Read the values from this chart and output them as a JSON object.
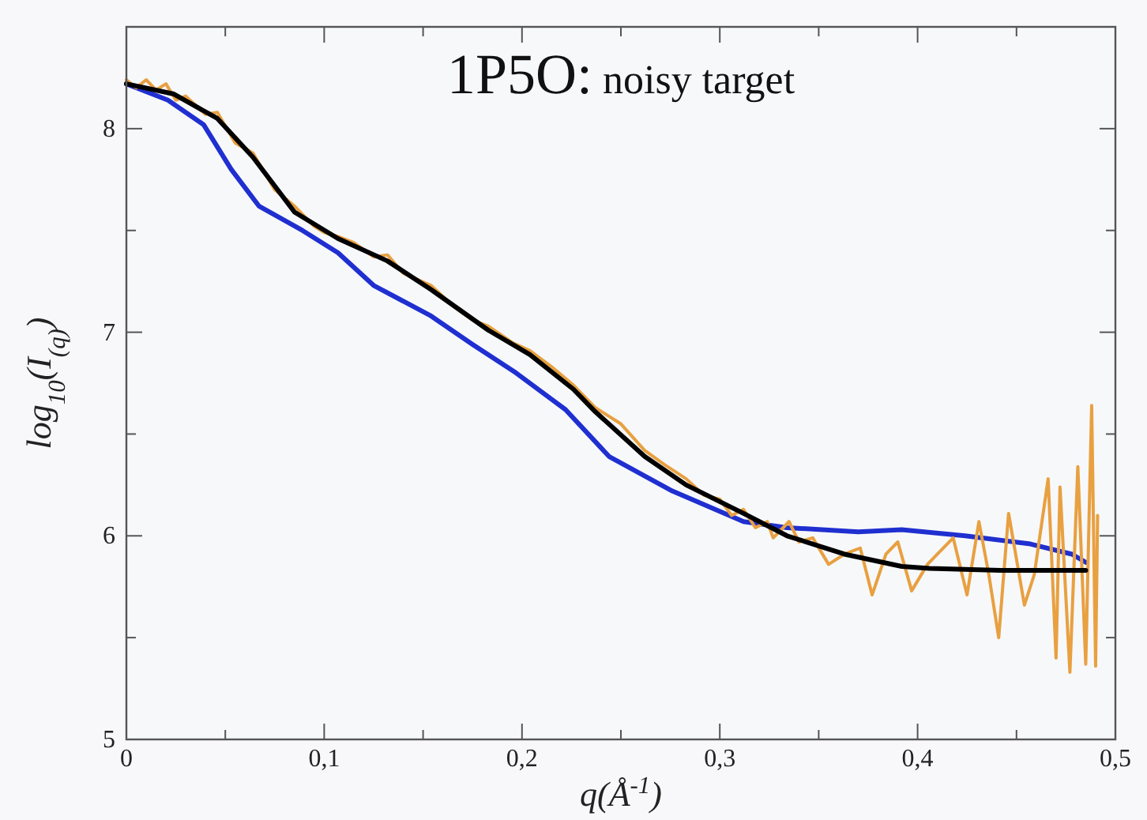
{
  "chart_data": {
    "type": "line",
    "title": "1P5O: noisy target",
    "xlabel": "q(Å$^{-1}$)",
    "ylabel": "log$_{10}$(I$_{(q)}$)",
    "xlim": [
      0,
      0.5
    ],
    "ylim": [
      5,
      8.5
    ],
    "xticks": [
      0,
      {
        "value": 0.05,
        "label": null
      },
      {
        "value": 0.1,
        "label": "0,1"
      },
      {
        "value": 0.15,
        "label": null
      },
      {
        "value": 0.2,
        "label": "0,2"
      },
      {
        "value": 0.25,
        "label": null
      },
      {
        "value": 0.3,
        "label": "0,3"
      },
      {
        "value": 0.35,
        "label": null
      },
      {
        "value": 0.4,
        "label": "0,4"
      },
      {
        "value": 0.45,
        "label": null
      },
      {
        "value": 0.5,
        "label": "0,5"
      }
    ],
    "yticks": [
      5,
      {
        "value": 5.5,
        "label": null
      },
      6,
      {
        "value": 6.5,
        "label": null
      },
      7,
      {
        "value": 7.5,
        "label": null
      },
      8,
      {
        "value": 8.5,
        "label": null
      }
    ],
    "grid": false,
    "marker": "none",
    "line_style": "solid",
    "series": [
      {
        "color": "#1f2fd0",
        "x": [
          0,
          0.021,
          0.039,
          0.053,
          0.067,
          0.089,
          0.107,
          0.125,
          0.154,
          0.175,
          0.197,
          0.222,
          0.244,
          0.276,
          0.312,
          0.334,
          0.37,
          0.392,
          0.424,
          0.457,
          0.478,
          0.485
        ],
        "values": [
          8.22,
          8.14,
          8.02,
          7.8,
          7.62,
          7.5,
          7.39,
          7.23,
          7.08,
          6.94,
          6.8,
          6.62,
          6.39,
          6.22,
          6.07,
          6.04,
          6.02,
          6.03,
          6,
          5.96,
          5.91,
          5.87
        ]
      },
      {
        "color": "#e8a040",
        "x": [
          0,
          0.005,
          0.01,
          0.015,
          0.02,
          0.025,
          0.03,
          0.04,
          0.046,
          0.055,
          0.064,
          0.075,
          0.085,
          0.095,
          0.1,
          0.107,
          0.115,
          0.125,
          0.132,
          0.14,
          0.154,
          0.165,
          0.175,
          0.183,
          0.195,
          0.204,
          0.215,
          0.226,
          0.237,
          0.25,
          0.262,
          0.272,
          0.283,
          0.292,
          0.3,
          0.306,
          0.312,
          0.318,
          0.324,
          0.327,
          0.335,
          0.34,
          0.347,
          0.355,
          0.363,
          0.371,
          0.377,
          0.384,
          0.39,
          0.397,
          0.405,
          0.41,
          0.418,
          0.425,
          0.431,
          0.436,
          0.441,
          0.446,
          0.454,
          0.459,
          0.466,
          0.47,
          0.472,
          0.477,
          0.481,
          0.485,
          0.488,
          0.49,
          0.491
        ],
        "values": [
          8.24,
          8.2,
          8.24,
          8.19,
          8.22,
          8.14,
          8.16,
          8.07,
          8.08,
          7.93,
          7.88,
          7.7,
          7.62,
          7.52,
          7.49,
          7.47,
          7.44,
          7.37,
          7.38,
          7.29,
          7.23,
          7.13,
          7.06,
          7.03,
          6.95,
          6.91,
          6.83,
          6.74,
          6.63,
          6.55,
          6.42,
          6.35,
          6.28,
          6.2,
          6.18,
          6.1,
          6.13,
          6.04,
          6.07,
          5.99,
          6.07,
          5.97,
          5.99,
          5.86,
          5.91,
          5.94,
          5.71,
          5.91,
          5.97,
          5.73,
          5.86,
          5.91,
          5.99,
          5.71,
          6.07,
          5.81,
          5.5,
          6.11,
          5.66,
          5.81,
          6.28,
          5.4,
          6.24,
          5.33,
          6.34,
          5.37,
          6.64,
          5.36,
          6.1
        ]
      },
      {
        "color": "#000000",
        "x": [
          0,
          0.024,
          0.046,
          0.064,
          0.085,
          0.107,
          0.132,
          0.154,
          0.183,
          0.204,
          0.226,
          0.237,
          0.262,
          0.283,
          0.312,
          0.334,
          0.363,
          0.392,
          0.406,
          0.442,
          0.485
        ],
        "values": [
          8.22,
          8.17,
          8.05,
          7.86,
          7.59,
          7.46,
          7.35,
          7.21,
          7.01,
          6.89,
          6.72,
          6.61,
          6.39,
          6.25,
          6.11,
          6,
          5.91,
          5.85,
          5.84,
          5.83,
          5.83
        ]
      }
    ]
  }
}
